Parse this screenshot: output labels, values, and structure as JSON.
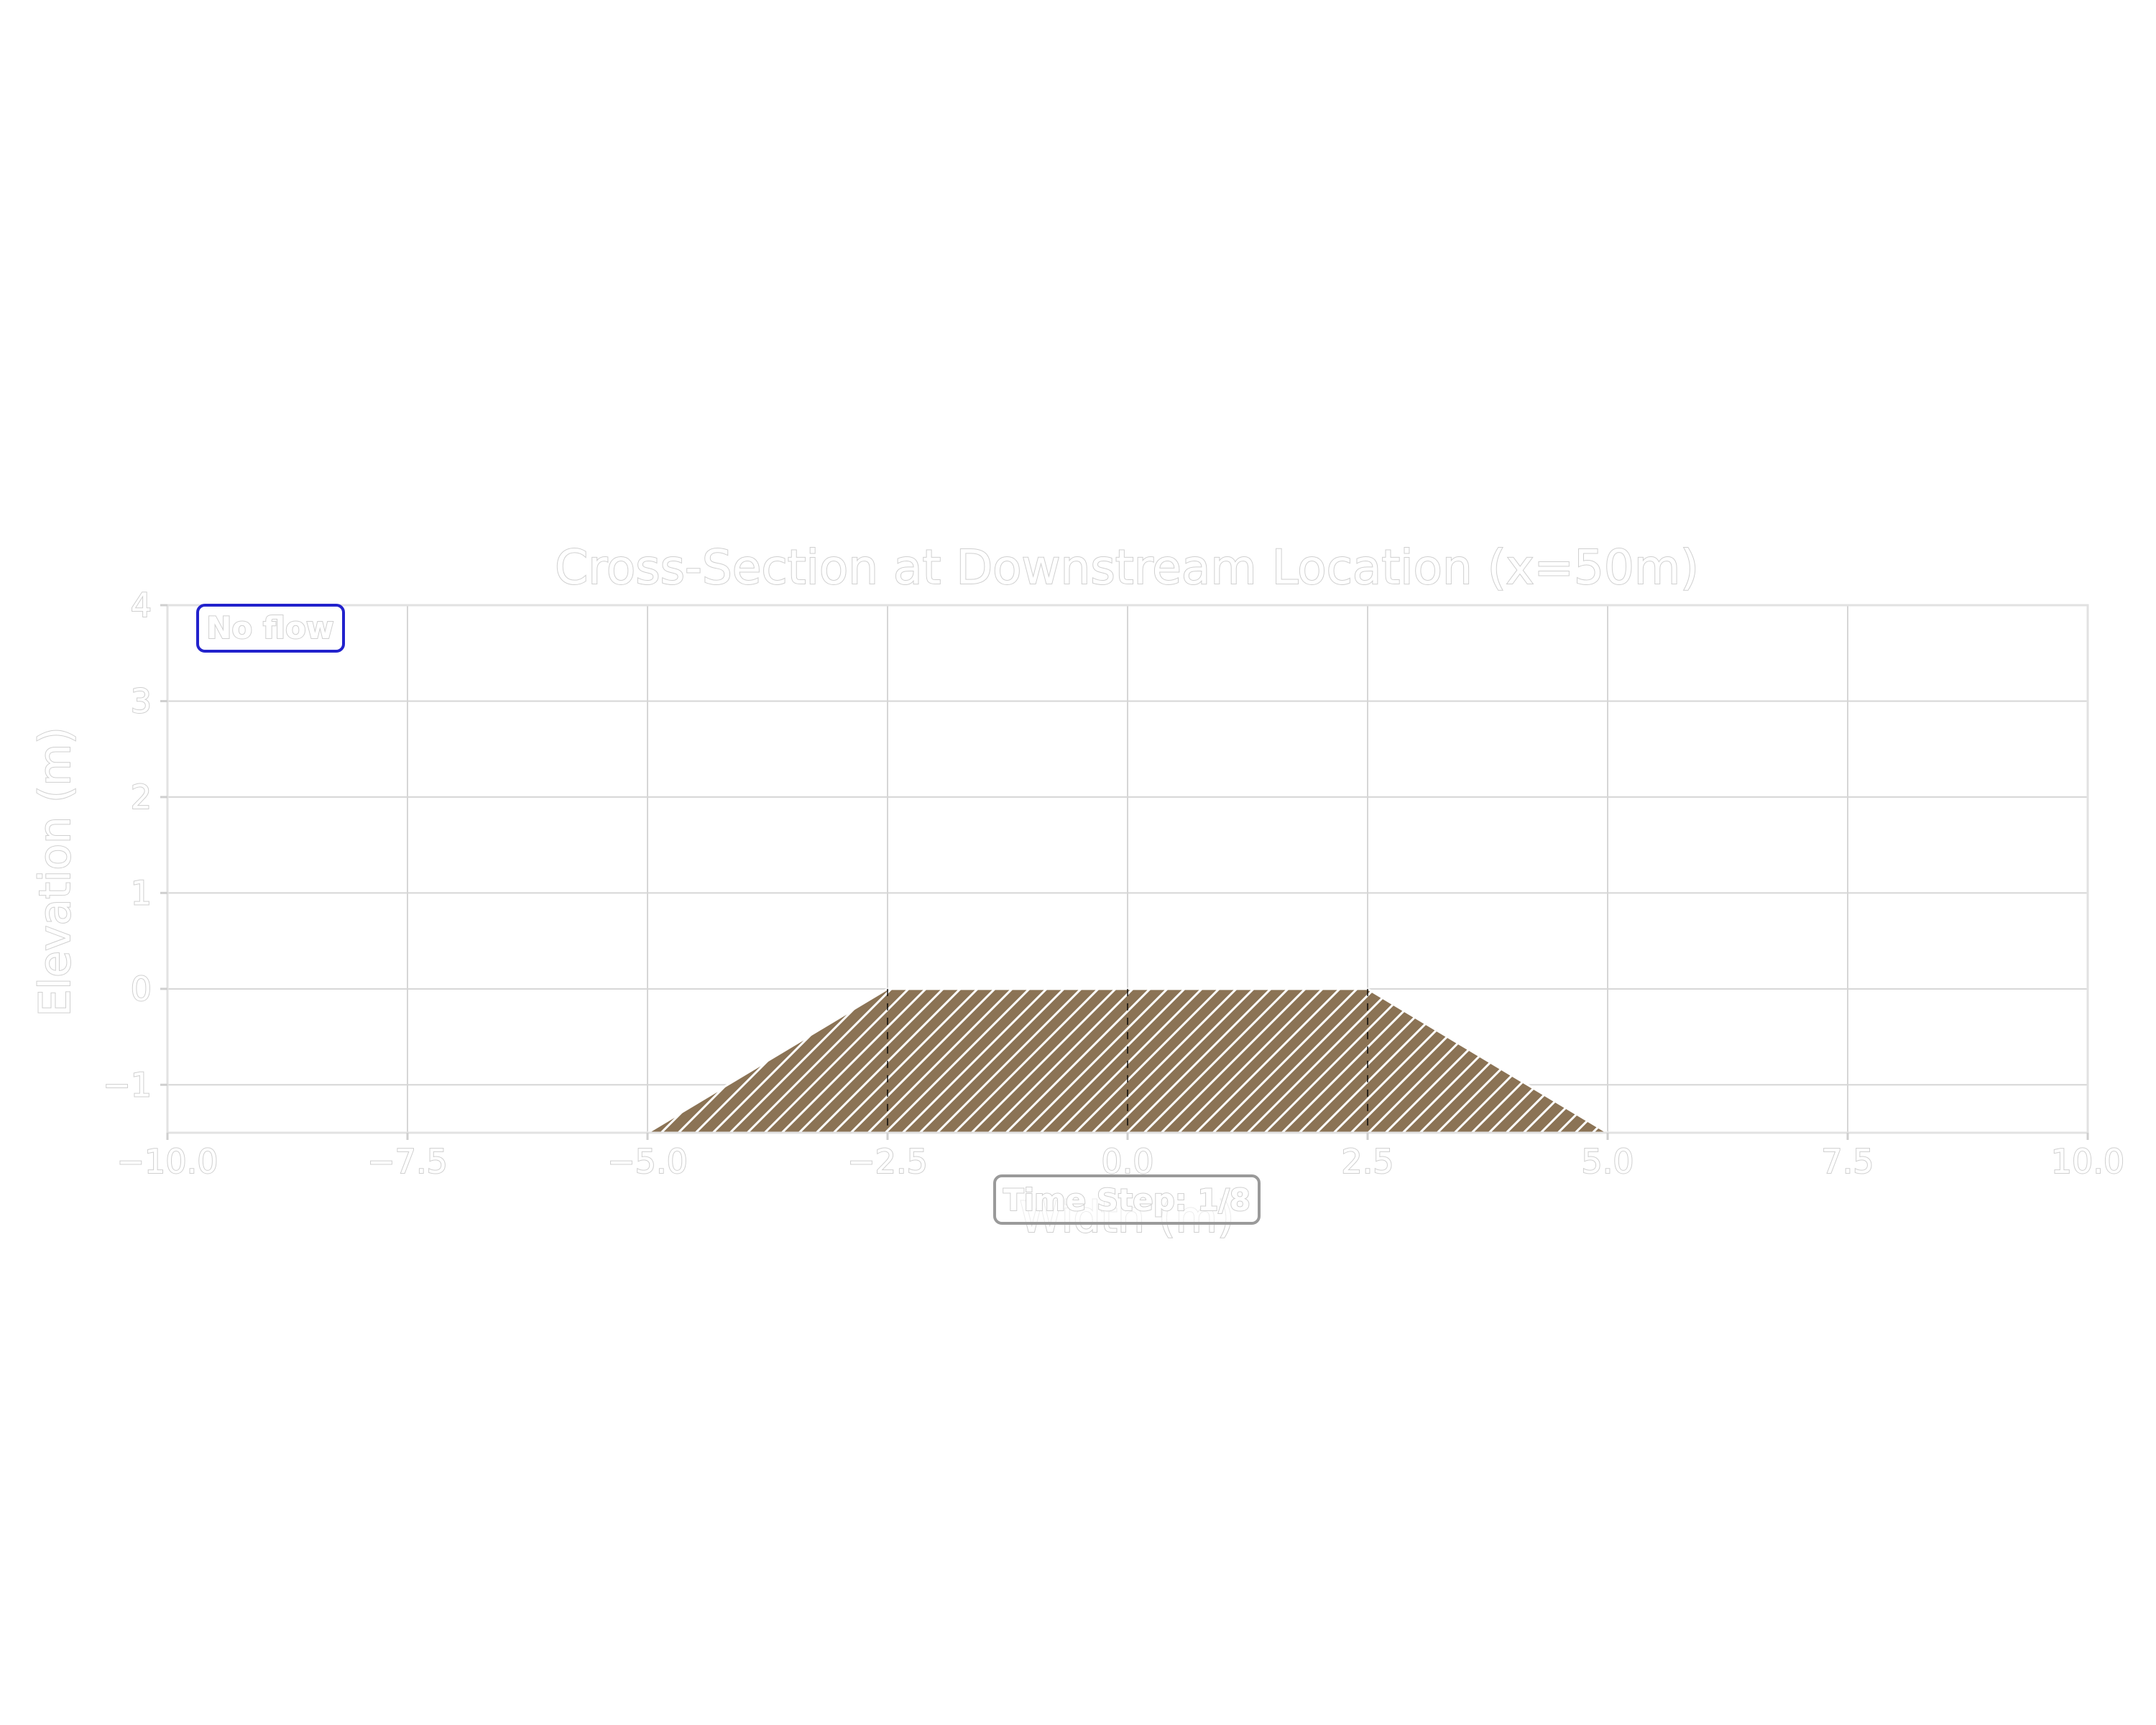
{
  "chart_data": {
    "type": "area",
    "title": "Cross-Section at Downstream Location (x=50m)",
    "xlabel": "Width (m)",
    "ylabel": "Elevation (m)",
    "xlim": [
      -10.0,
      10.0
    ],
    "ylim": [
      -1.5,
      4.0
    ],
    "xticks": [
      "−10.0",
      "−7.5",
      "−5.0",
      "−2.5",
      "0.0",
      "2.5",
      "5.0",
      "7.5",
      "10.0"
    ],
    "yticks": [
      "−1",
      "0",
      "1",
      "2",
      "3",
      "4"
    ],
    "grid": true,
    "channel_bed": {
      "x": [
        -5.0,
        -2.5,
        2.5,
        5.0
      ],
      "y": [
        -1.5,
        0.0,
        0.0,
        -1.5
      ],
      "fill_color": "#8b7355",
      "hatch": "//"
    },
    "status_label": "No flow",
    "status_border_color": "#2222cc",
    "time_step_label": "Time Step: 1/8"
  }
}
